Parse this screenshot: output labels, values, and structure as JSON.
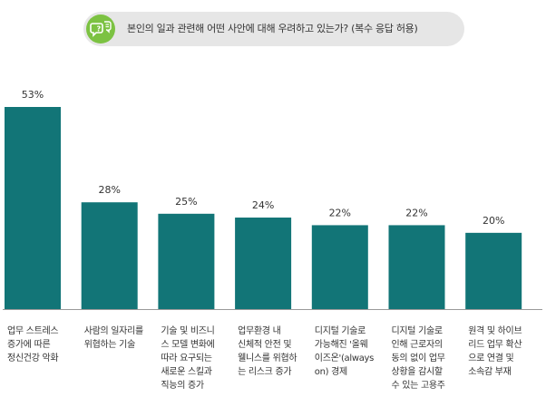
{
  "header": {
    "question": "본인의 일과 관련해 어떤 사안에 대해 우려하고 있는가? (복수 응답 허용)",
    "icon": "speech-bubble-question-icon",
    "accent_color": "#7cc242"
  },
  "chart_data": {
    "type": "bar",
    "categories": [
      "업무 스트레스\n증가에 따른\n정신건강 악화",
      "사람의 일자리를\n위협하는 기술",
      "기술 및 비즈니\n스 모델 변화에\n따라 요구되는\n새로운 스킬과\n직능의 증가",
      "업무환경 내\n신체적 안전 및\n웰니스를 위협하\n는 리스크 증가",
      "디지털 기술로\n가능해진 '올웨\n이즈온'(always\non) 경제",
      "디지털 기술로\n인해 근로자의\n동의 없이 업무\n상황을 감시할\n수 있는 고용주",
      "원격 및 하이브\n리드 업무 확산\n으로 연결 및\n소속감 부재"
    ],
    "values": [
      53,
      28,
      25,
      24,
      22,
      22,
      20
    ],
    "value_labels": [
      "53%",
      "28%",
      "25%",
      "24%",
      "22%",
      "22%",
      "20%"
    ],
    "bar_color": "#127577",
    "ylim": [
      0,
      53
    ]
  }
}
